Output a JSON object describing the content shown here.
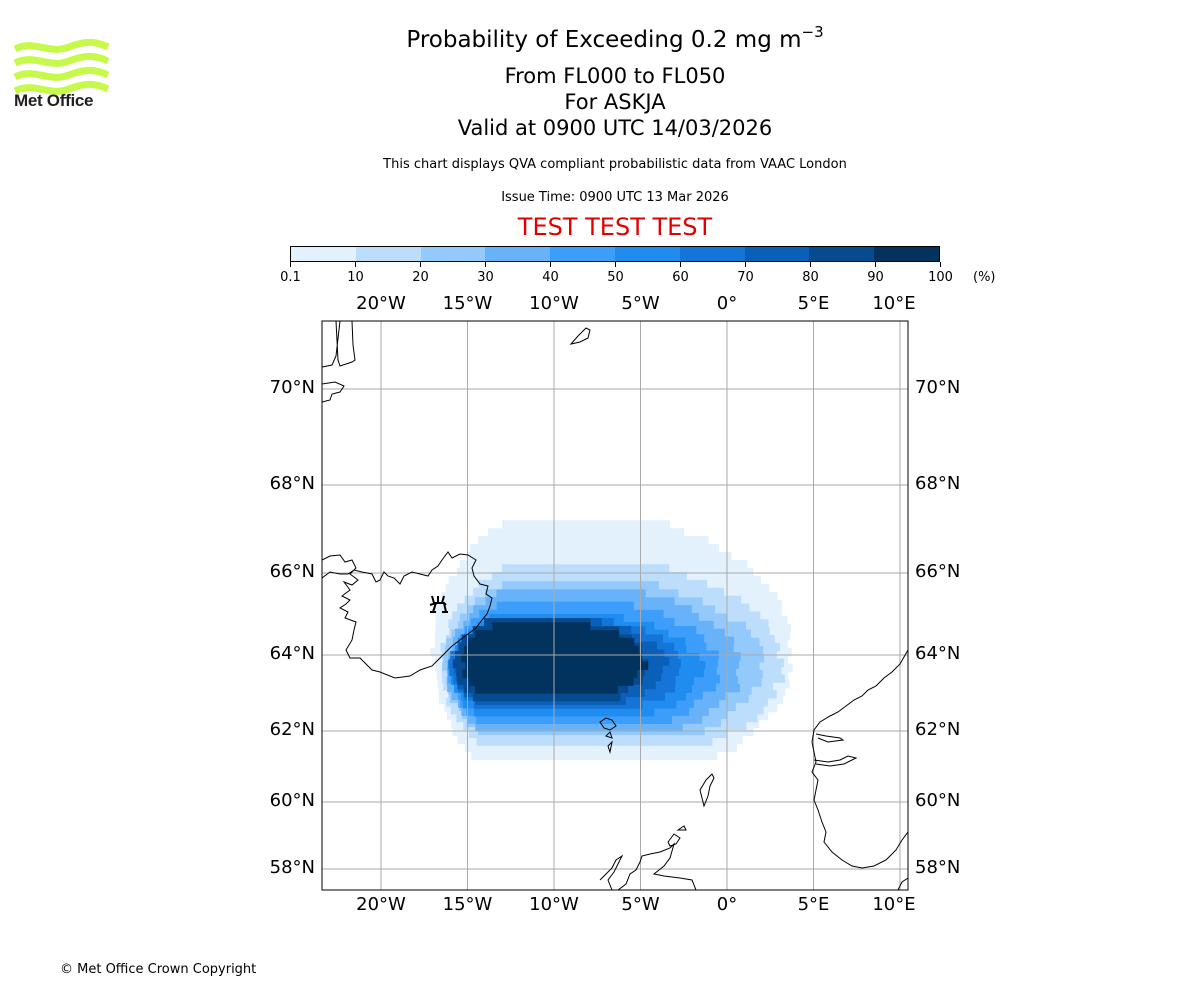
{
  "branding": {
    "logo_text": "Met Office",
    "logo_color": "#c6f94a"
  },
  "titles": {
    "main": "Probability of Exceeding 0.2 mg m",
    "main_superscript": "−3",
    "level_range": "From FL000 to FL050",
    "volcano": "For ASKJA",
    "valid_time": "Valid at 0900 UTC 14/03/2026",
    "description": "This chart displays QVA compliant probabilistic data from VAAC London",
    "issue_time": "Issue Time: 0900 UTC 13 Mar 2026",
    "test_banner": "TEST TEST TEST",
    "test_banner_color": "#e00000"
  },
  "colorbar": {
    "unit": "(%)",
    "ticks": [
      "0.1",
      "10",
      "20",
      "30",
      "40",
      "50",
      "60",
      "70",
      "80",
      "90",
      "100"
    ],
    "colors": [
      "#e3f1fd",
      "#bcdefc",
      "#93c9fb",
      "#68b2fa",
      "#3c9efa",
      "#1f8cf0",
      "#1474d8",
      "#0a60b8",
      "#064b8f",
      "#02335f"
    ]
  },
  "chart_data": {
    "type": "heatmap",
    "title": "Probability of Exceeding 0.2 mg m-3, FL000 to FL050, ASKJA",
    "valid": "0900 UTC 14/03/2026",
    "lon_range": [
      -23.5,
      10.5
    ],
    "lat_range": [
      57.4,
      71.4
    ],
    "lon_ticks": [
      "20°W",
      "15°W",
      "10°W",
      "5°W",
      "0°",
      "5°E",
      "10°E"
    ],
    "lon_tick_values": [
      -20,
      -15,
      -10,
      -5,
      0,
      5,
      10
    ],
    "lat_ticks": [
      "70°N",
      "68°N",
      "66°N",
      "64°N",
      "62°N",
      "60°N",
      "58°N"
    ],
    "lat_tick_values": [
      70,
      68,
      66,
      64,
      62,
      60,
      58
    ],
    "gridlines": true,
    "volcano_marker": {
      "name": "ASKJA",
      "lon": -16.8,
      "lat": 65.05
    },
    "probability_regions_percent": [
      {
        "level": "0.1-10",
        "lon": [
          -17.0,
          3.8
        ],
        "lat": [
          61.2,
          67.2
        ]
      },
      {
        "level": "10-20",
        "lon": [
          -16.5,
          3.2
        ],
        "lat": [
          61.6,
          66.2
        ]
      },
      {
        "level": "20-30",
        "lon": [
          -16.3,
          2.0
        ],
        "lat": [
          61.9,
          65.8
        ]
      },
      {
        "level": "30-40",
        "lon": [
          -16.2,
          0.8
        ],
        "lat": [
          62.0,
          65.6
        ]
      },
      {
        "level": "40-50",
        "lon": [
          -16.0,
          -0.5
        ],
        "lat": [
          62.2,
          65.3
        ]
      },
      {
        "level": "50-60",
        "lon": [
          -16.0,
          -1.5
        ],
        "lat": [
          62.4,
          65.0
        ]
      },
      {
        "level": "60-70",
        "lon": [
          -16.0,
          -2.5
        ],
        "lat": [
          62.6,
          64.9
        ]
      },
      {
        "level": "70-80",
        "lon": [
          -15.8,
          -3.5
        ],
        "lat": [
          62.7,
          64.9
        ]
      },
      {
        "level": "80-90",
        "lon": [
          -15.8,
          -4.5
        ],
        "lat": [
          62.8,
          64.9
        ]
      },
      {
        "level": "90-100",
        "lon": [
          -15.3,
          -4.8
        ],
        "lat": [
          63.0,
          64.8
        ]
      }
    ]
  },
  "footer": {
    "copyright": "© Met Office Crown Copyright"
  }
}
